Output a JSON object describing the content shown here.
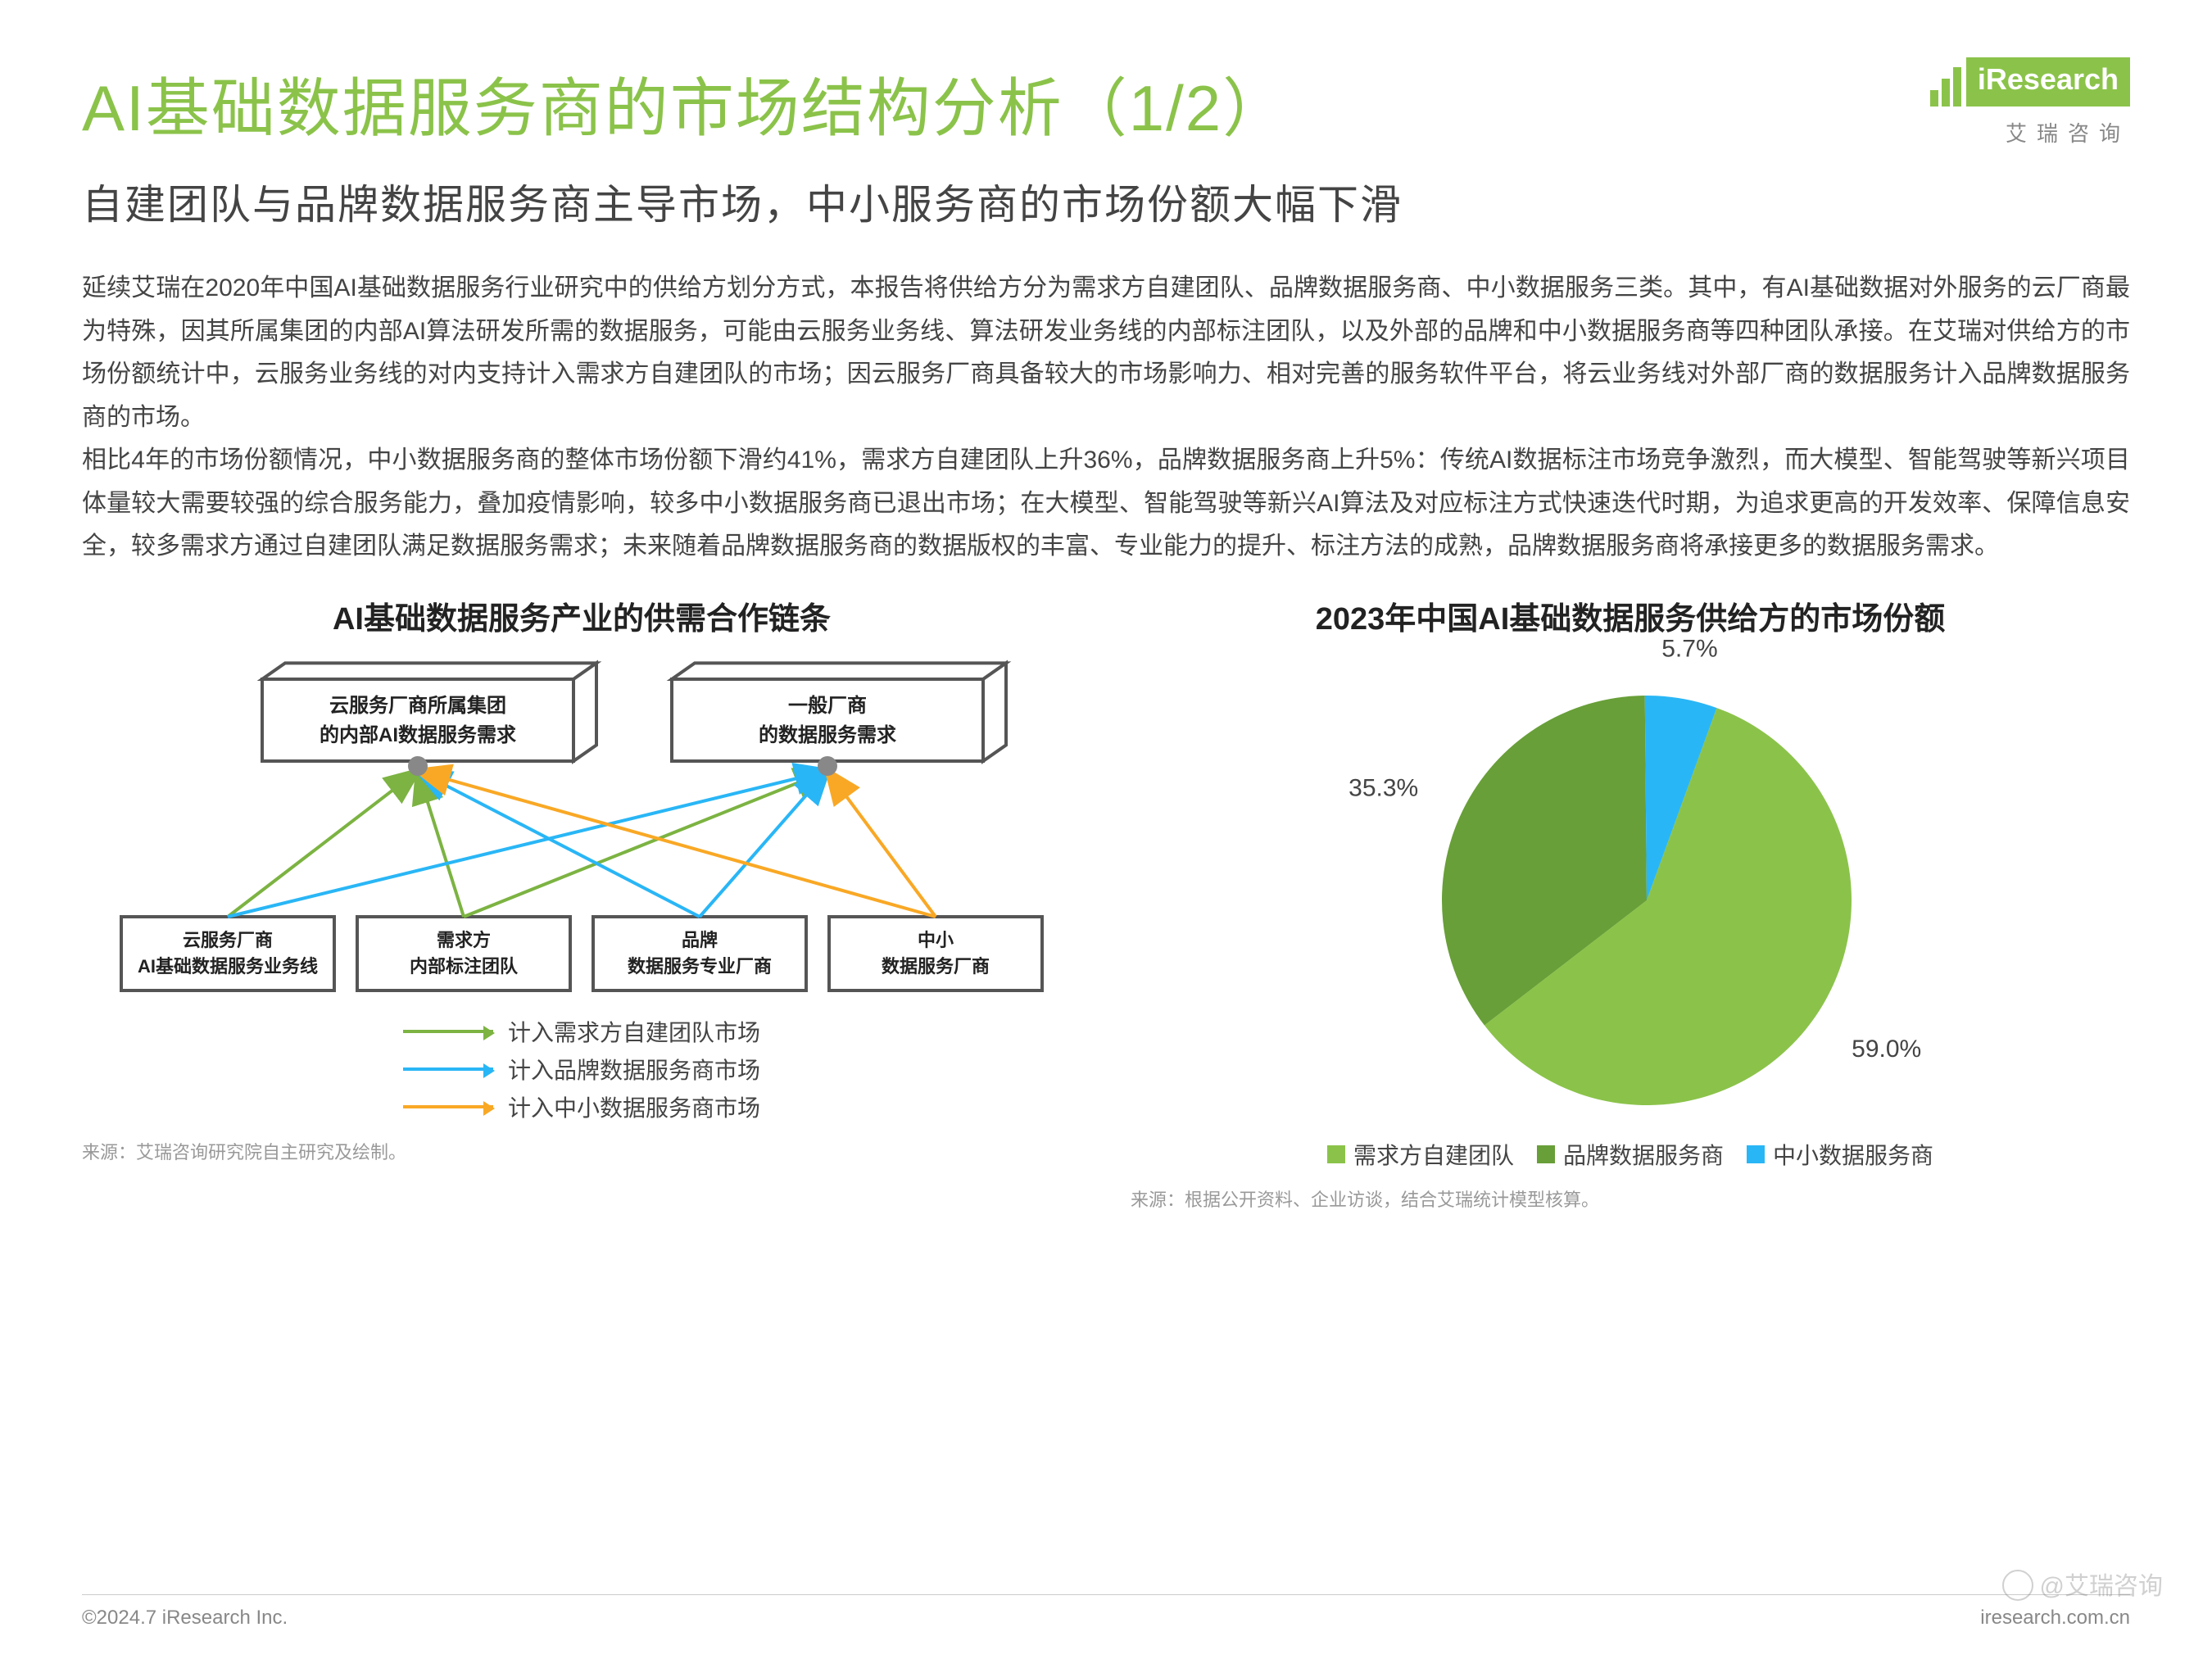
{
  "header": {
    "title": "AI基础数据服务商的市场结构分析（1/2）",
    "logo_text": "iResearch",
    "logo_sub": "艾瑞咨询"
  },
  "subtitle": "自建团队与品牌数据服务商主导市场，中小服务商的市场份额大幅下滑",
  "body": {
    "p1": "延续艾瑞在2020年中国AI基础数据服务行业研究中的供给方划分方式，本报告将供给方分为需求方自建团队、品牌数据服务商、中小数据服务三类。其中，有AI基础数据对外服务的云厂商最为特殊，因其所属集团的内部AI算法研发所需的数据服务，可能由云服务业务线、算法研发业务线的内部标注团队，以及外部的品牌和中小数据服务商等四种团队承接。在艾瑞对供给方的市场份额统计中，云服务业务线的对内支持计入需求方自建团队的市场；因云服务厂商具备较大的市场影响力、相对完善的服务软件平台，将云业务线对外部厂商的数据服务计入品牌数据服务商的市场。",
    "p2": "相比4年的市场份额情况，中小数据服务商的整体市场份额下滑约41%，需求方自建团队上升36%，品牌数据服务商上升5%：传统AI数据标注市场竞争激烈，而大模型、智能驾驶等新兴项目体量较大需要较强的综合服务能力，叠加疫情影响，较多中小数据服务商已退出市场；在大模型、智能驾驶等新兴AI算法及对应标注方式快速迭代时期，为追求更高的开发效率、保障信息安全，较多需求方通过自建团队满足数据服务需求；未来随着品牌数据服务商的数据版权的丰富、专业能力的提升、标注方法的成熟，品牌数据服务商将承接更多的数据服务需求。"
  },
  "flow_diagram": {
    "title": "AI基础数据服务产业的供需合作链条",
    "top_nodes": [
      {
        "line1": "云服务厂商所属集团",
        "line2": "的内部AI数据服务需求"
      },
      {
        "line1": "一般厂商",
        "line2": "的数据服务需求"
      }
    ],
    "bottom_nodes": [
      {
        "line1": "云服务厂商",
        "line2": "AI基础数据服务业务线"
      },
      {
        "line1": "需求方",
        "line2": "内部标注团队"
      },
      {
        "line1": "品牌",
        "line2": "数据服务专业厂商"
      },
      {
        "line1": "中小",
        "line2": "数据服务厂商"
      }
    ],
    "edges": [
      {
        "from": 0,
        "to": 0,
        "color": "#7cb342"
      },
      {
        "from": 1,
        "to": 0,
        "color": "#7cb342"
      },
      {
        "from": 1,
        "to": 1,
        "color": "#7cb342"
      },
      {
        "from": 2,
        "to": 0,
        "color": "#29b6f6"
      },
      {
        "from": 2,
        "to": 1,
        "color": "#29b6f6"
      },
      {
        "from": 0,
        "to": 1,
        "color": "#29b6f6"
      },
      {
        "from": 3,
        "to": 0,
        "color": "#f9a825"
      },
      {
        "from": 3,
        "to": 1,
        "color": "#f9a825"
      }
    ],
    "legend": [
      {
        "color": "#7cb342",
        "label": "计入需求方自建团队市场"
      },
      {
        "color": "#29b6f6",
        "label": "计入品牌数据服务商市场"
      },
      {
        "color": "#f9a825",
        "label": "计入中小数据服务商市场"
      }
    ],
    "node_style": {
      "top_fill": "#ffffff",
      "top_stroke": "#555555",
      "bottom_fill": "#ffffff",
      "bottom_stroke": "#555555",
      "text_color": "#222222",
      "font_size": 24,
      "font_weight": 700,
      "stroke_width": 4,
      "arrow_dot_color": "#888888"
    },
    "source": "来源：艾瑞咨询研究院自主研究及绘制。"
  },
  "pie_chart": {
    "title": "2023年中国AI基础数据服务供给方的市场份额",
    "type": "pie",
    "slices": [
      {
        "label": "需求方自建团队",
        "value": 59.0,
        "display": "59.0%",
        "color": "#8bc34a"
      },
      {
        "label": "品牌数据服务商",
        "value": 35.3,
        "display": "35.3%",
        "color": "#689f38"
      },
      {
        "label": "中小数据服务商",
        "value": 5.7,
        "display": "5.7%",
        "color": "#29b6f6"
      }
    ],
    "start_angle_deg": -70,
    "label_fontsize": 30,
    "label_color": "#444444",
    "background_color": "#ffffff",
    "source": "来源：根据公开资料、企业访谈，结合艾瑞统计模型核算。"
  },
  "footer": {
    "left": "©2024.7 iResearch Inc.",
    "right": "iresearch.com.cn"
  },
  "watermark": "@艾瑞咨询"
}
